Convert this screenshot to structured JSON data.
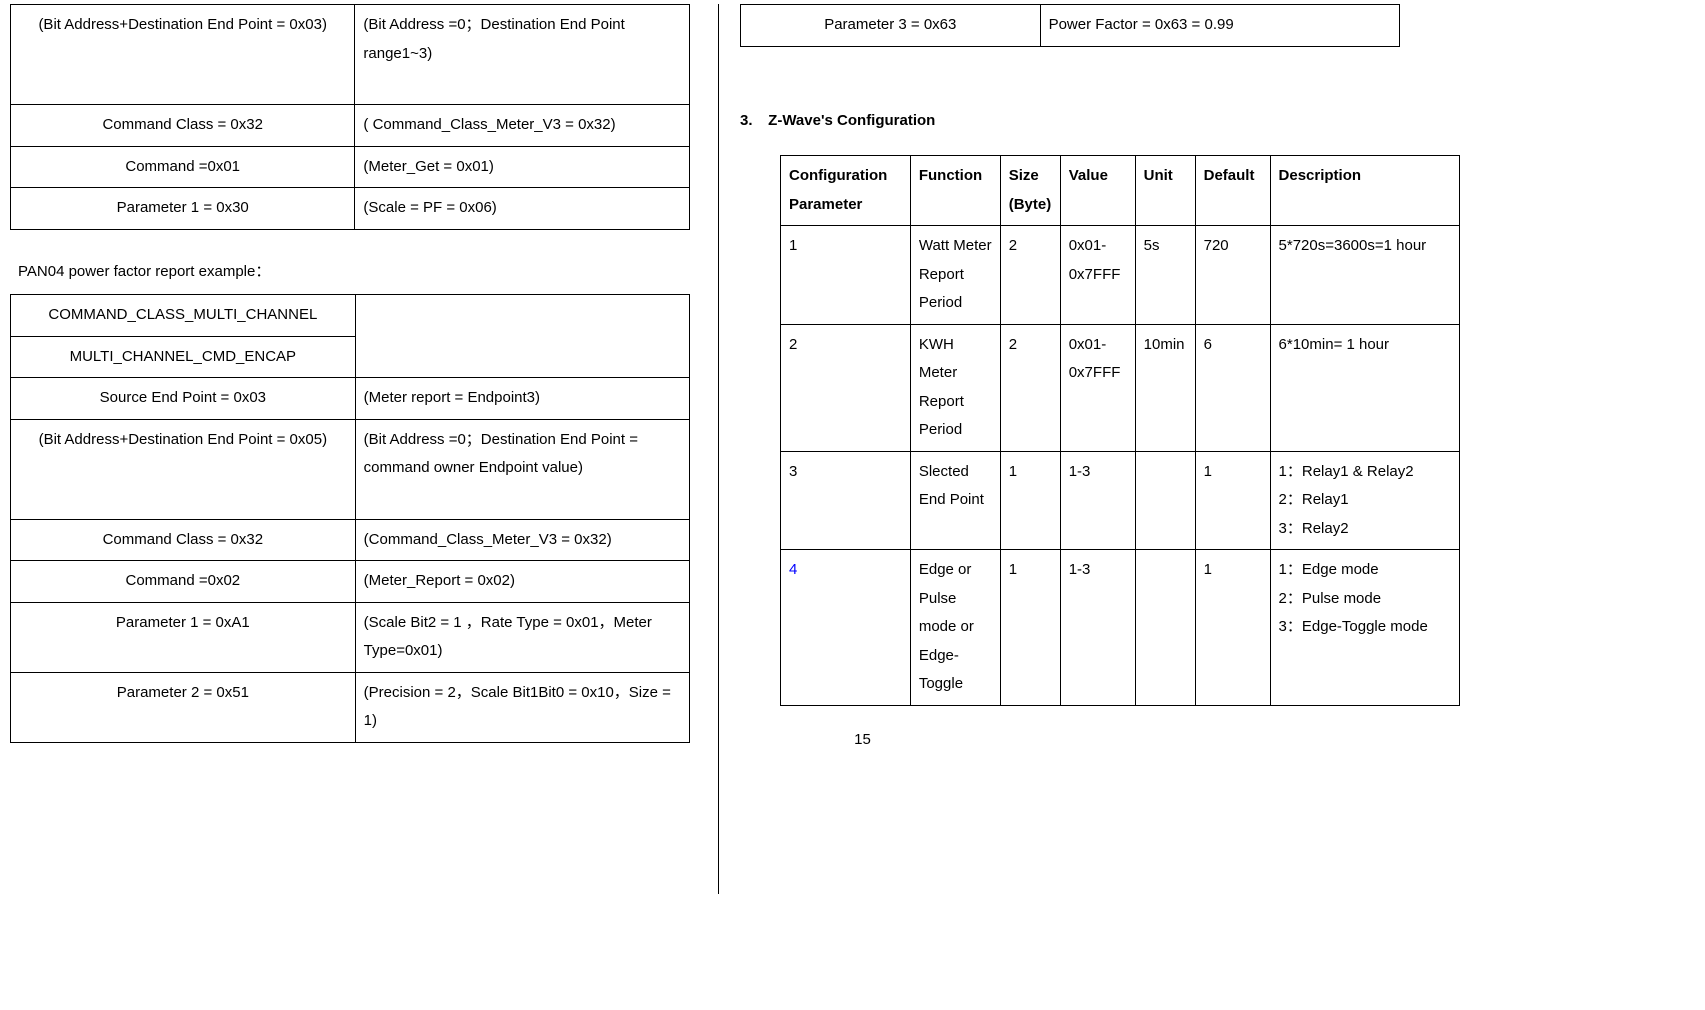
{
  "left": {
    "table1": {
      "rows": [
        {
          "c1": "(Bit Address+Destination End Point = 0x03)",
          "c2": "(Bit Address =0；Destination End Point range1~3)",
          "tall": true
        },
        {
          "c1": "Command Class = 0x32",
          "c2": "( Command_Class_Meter_V3 = 0x32)"
        },
        {
          "c1": "Command =0x01",
          "c2": "(Meter_Get = 0x01)"
        },
        {
          "c1": "Parameter 1 = 0x30",
          "c2": "(Scale = PF = 0x06)"
        }
      ]
    },
    "caption": "PAN04 power factor report example：",
    "table2": {
      "rows": [
        {
          "c1": "COMMAND_CLASS_MULTI_CHANNEL",
          "c2": ""
        },
        {
          "c1": "MULTI_CHANNEL_CMD_ENCAP",
          "c2": ""
        },
        {
          "c1": "Source End Point = 0x03",
          "c2": "(Meter report = Endpoint3)"
        },
        {
          "c1": "(Bit Address+Destination End Point = 0x05)",
          "c2": "(Bit Address =0；Destination End Point = command owner Endpoint value)",
          "tall": true
        },
        {
          "c1": "Command Class = 0x32",
          "c2": "(Command_Class_Meter_V3 = 0x32)"
        },
        {
          "c1": "Command =0x02",
          "c2": "(Meter_Report = 0x02)"
        },
        {
          "c1": "Parameter 1 = 0xA1",
          "c2": "(Scale Bit2 = 1 ，Rate Type = 0x01，Meter Type=0x01)"
        },
        {
          "c1": "Parameter 2 = 0x51",
          "c2": "(Precision = 2，Scale Bit1Bit0 = 0x10，Size = 1)"
        }
      ]
    }
  },
  "right": {
    "small_table": {
      "c1": "Parameter 3 = 0x63",
      "c2": "Power Factor = 0x63 = 0.99"
    },
    "heading_num": "3.",
    "heading_text": "Z-Wave's Configuration",
    "cfg_headers": [
      "Configuration Parameter",
      "Function",
      "Size (Byte)",
      "Value",
      "Unit",
      "Default",
      "Description"
    ],
    "cfg_rows": [
      {
        "cp": "1",
        "fn": "Watt Meter Report Period",
        "sz": "2",
        "val": "0x01-0x7FFF",
        "un": "5s",
        "df": "720",
        "ds": "5*720s=3600s=1 hour"
      },
      {
        "cp": "2",
        "fn": "KWH Meter Report Period",
        "sz": "2",
        "val": "0x01-0x7FFF",
        "un": "10min",
        "df": "6",
        "ds": "6*10min= 1 hour"
      },
      {
        "cp": "3",
        "fn": "Slected End Point",
        "sz": "1",
        "val": "1-3",
        "un": "",
        "df": "1",
        "ds": "1：Relay1 & Relay2\n2：Relay1\n3：Relay2"
      },
      {
        "cp": "4",
        "cp_blue": true,
        "fn": "Edge or Pulse mode or Edge-Toggle",
        "sz": "1",
        "val": "1-3",
        "un": "",
        "df": "1",
        "ds": "1：Edge mode\n2：Pulse mode\n3：Edge-Toggle mode"
      }
    ]
  },
  "page_number": "15"
}
